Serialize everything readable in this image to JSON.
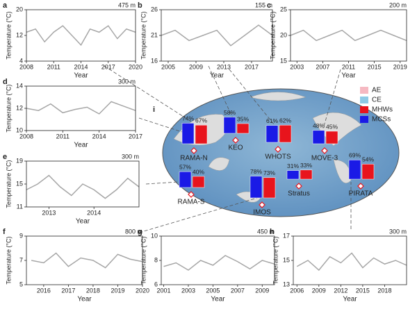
{
  "chart_data": [
    {
      "type": "line",
      "label": "a",
      "annotation": "475 m",
      "xlabel": "Year",
      "ylabel": "Temperature (°C)",
      "color": "#a6a6a6",
      "x": [
        2008,
        2009,
        2010,
        2011,
        2012,
        2013,
        2014,
        2015,
        2016,
        2017,
        2018,
        2019,
        2020
      ],
      "values": [
        13,
        14,
        10,
        13,
        15,
        12,
        9,
        14,
        13,
        15,
        11,
        14,
        13
      ],
      "xlim": [
        2008,
        2020
      ],
      "xticks": [
        2008,
        2011,
        2014,
        2017,
        2020
      ],
      "ylim": [
        4,
        20
      ],
      "yticks": [
        4,
        12,
        20
      ]
    },
    {
      "type": "line",
      "label": "b",
      "annotation": "155 m",
      "xlabel": "Year",
      "ylabel": "Temperature (°C)",
      "color": "#a6a6a6",
      "x": [
        2004,
        2006,
        2008,
        2010,
        2012,
        2014,
        2016,
        2018,
        2020
      ],
      "values": [
        21,
        22,
        20,
        21,
        22,
        19,
        21,
        23,
        21
      ],
      "xlim": [
        2004,
        2020
      ],
      "xticks": [
        2005,
        2009,
        2013,
        2017
      ],
      "ylim": [
        16,
        26
      ],
      "yticks": [
        16,
        21,
        26
      ]
    },
    {
      "type": "line",
      "label": "c",
      "annotation": "200 m",
      "xlabel": "Year",
      "ylabel": "Temperature (°C)",
      "color": "#a6a6a6",
      "x": [
        2002,
        2004,
        2006,
        2008,
        2010,
        2012,
        2014,
        2016,
        2018,
        2020
      ],
      "values": [
        20,
        21,
        19,
        20,
        21,
        19,
        20,
        21,
        20,
        19
      ],
      "xlim": [
        2002,
        2020
      ],
      "xticks": [
        2003,
        2007,
        2011,
        2015,
        2019
      ],
      "ylim": [
        15,
        25
      ],
      "yticks": [
        15,
        20,
        25
      ]
    },
    {
      "type": "line",
      "label": "d",
      "annotation": "300 m",
      "xlabel": "Year",
      "ylabel": "Temperature (°C)",
      "color": "#a6a6a6",
      "x": [
        2008,
        2009,
        2010,
        2011,
        2012,
        2013,
        2014,
        2015,
        2016,
        2017
      ],
      "values": [
        12,
        11.8,
        12.4,
        11.6,
        11.9,
        12.1,
        11.5,
        12.6,
        12.2,
        11.8
      ],
      "xlim": [
        2008,
        2017
      ],
      "xticks": [
        2008,
        2011,
        2014,
        2017
      ],
      "ylim": [
        10,
        14
      ],
      "yticks": [
        10,
        12,
        14
      ]
    },
    {
      "type": "line",
      "label": "e",
      "annotation": "300 m",
      "xlabel": "Year",
      "ylabel": "Temperature (°C)",
      "color": "#a6a6a6",
      "x": [
        2012.5,
        2012.75,
        2013,
        2013.25,
        2013.5,
        2013.75,
        2014,
        2014.25,
        2014.5,
        2014.75,
        2015
      ],
      "values": [
        14,
        15,
        16.5,
        14.5,
        13,
        15,
        14,
        12.5,
        14,
        16,
        14.5
      ],
      "xlim": [
        2012.5,
        2015
      ],
      "xticks": [
        2013,
        2014
      ],
      "ylim": [
        11,
        19
      ],
      "yticks": [
        11,
        15,
        19
      ]
    },
    {
      "type": "line",
      "label": "f",
      "annotation": "800 m",
      "xlabel": "Year",
      "ylabel": "Temperature (°C)",
      "color": "#a6a6a6",
      "x": [
        2015.5,
        2016,
        2016.5,
        2017,
        2017.5,
        2018,
        2018.5,
        2019,
        2019.5,
        2020
      ],
      "values": [
        7,
        6.8,
        7.6,
        6.5,
        7.2,
        7,
        6.4,
        7.5,
        7.1,
        6.9
      ],
      "xlim": [
        2015.3,
        2020
      ],
      "xticks": [
        2016,
        2017,
        2018,
        2019,
        2020
      ],
      "ylim": [
        5,
        9
      ],
      "yticks": [
        5,
        7,
        9
      ]
    },
    {
      "type": "line",
      "label": "g",
      "annotation": "450 m",
      "xlabel": "Year",
      "ylabel": "Temperature (°C)",
      "color": "#a6a6a6",
      "x": [
        2001,
        2002,
        2003,
        2004,
        2005,
        2006,
        2007,
        2008,
        2009,
        2010
      ],
      "values": [
        7.5,
        7.8,
        7.2,
        8,
        7.6,
        8.4,
        7.9,
        7.3,
        8,
        7.7
      ],
      "xlim": [
        2000.8,
        2010
      ],
      "xticks": [
        2001,
        2003,
        2005,
        2007,
        2009
      ],
      "ylim": [
        6,
        10
      ],
      "yticks": [
        6,
        8,
        10
      ]
    },
    {
      "type": "line",
      "label": "h",
      "annotation": "300 m",
      "xlabel": "Year",
      "ylabel": "Temperature (°C)",
      "color": "#a6a6a6",
      "x": [
        2006,
        2007.5,
        2009,
        2010.5,
        2012,
        2013.5,
        2015,
        2016.5,
        2018,
        2019.5,
        2021
      ],
      "values": [
        14.5,
        15,
        14.2,
        15.3,
        14.8,
        15.6,
        14.4,
        15.2,
        14.7,
        15,
        14.6
      ],
      "xlim": [
        2005.5,
        2021
      ],
      "xticks": [
        2006,
        2009,
        2012,
        2015,
        2018
      ],
      "ylim": [
        13,
        17
      ],
      "yticks": [
        13,
        15,
        17
      ]
    },
    {
      "type": "map-bar",
      "label": "i",
      "categories": [
        "RAMA-N",
        "KEO",
        "WHOTS",
        "MOVE-3",
        "RAMA-S",
        "IMOS",
        "Stratus",
        "PIRATA"
      ],
      "series": [
        {
          "name": "MCSs",
          "color": "#1a1ae6",
          "values": [
            74,
            58,
            61,
            48,
            57,
            78,
            31,
            69
          ],
          "value_labels": [
            "74%",
            "58%",
            "61%",
            "48%",
            "57%",
            "78%",
            "31%",
            "69%"
          ]
        },
        {
          "name": "MHWs",
          "color": "#e8141c",
          "values": [
            67,
            35,
            62,
            45,
            40,
            73,
            33,
            54
          ],
          "value_labels": [
            "67%",
            "35%",
            "62%",
            "45%",
            "40%",
            "73%",
            "33%",
            "54%"
          ]
        }
      ],
      "legend_items": [
        {
          "name": "AE",
          "color": "#f6b9c2"
        },
        {
          "name": "CE",
          "color": "#8ecae6"
        }
      ],
      "legend": "top-right"
    }
  ]
}
